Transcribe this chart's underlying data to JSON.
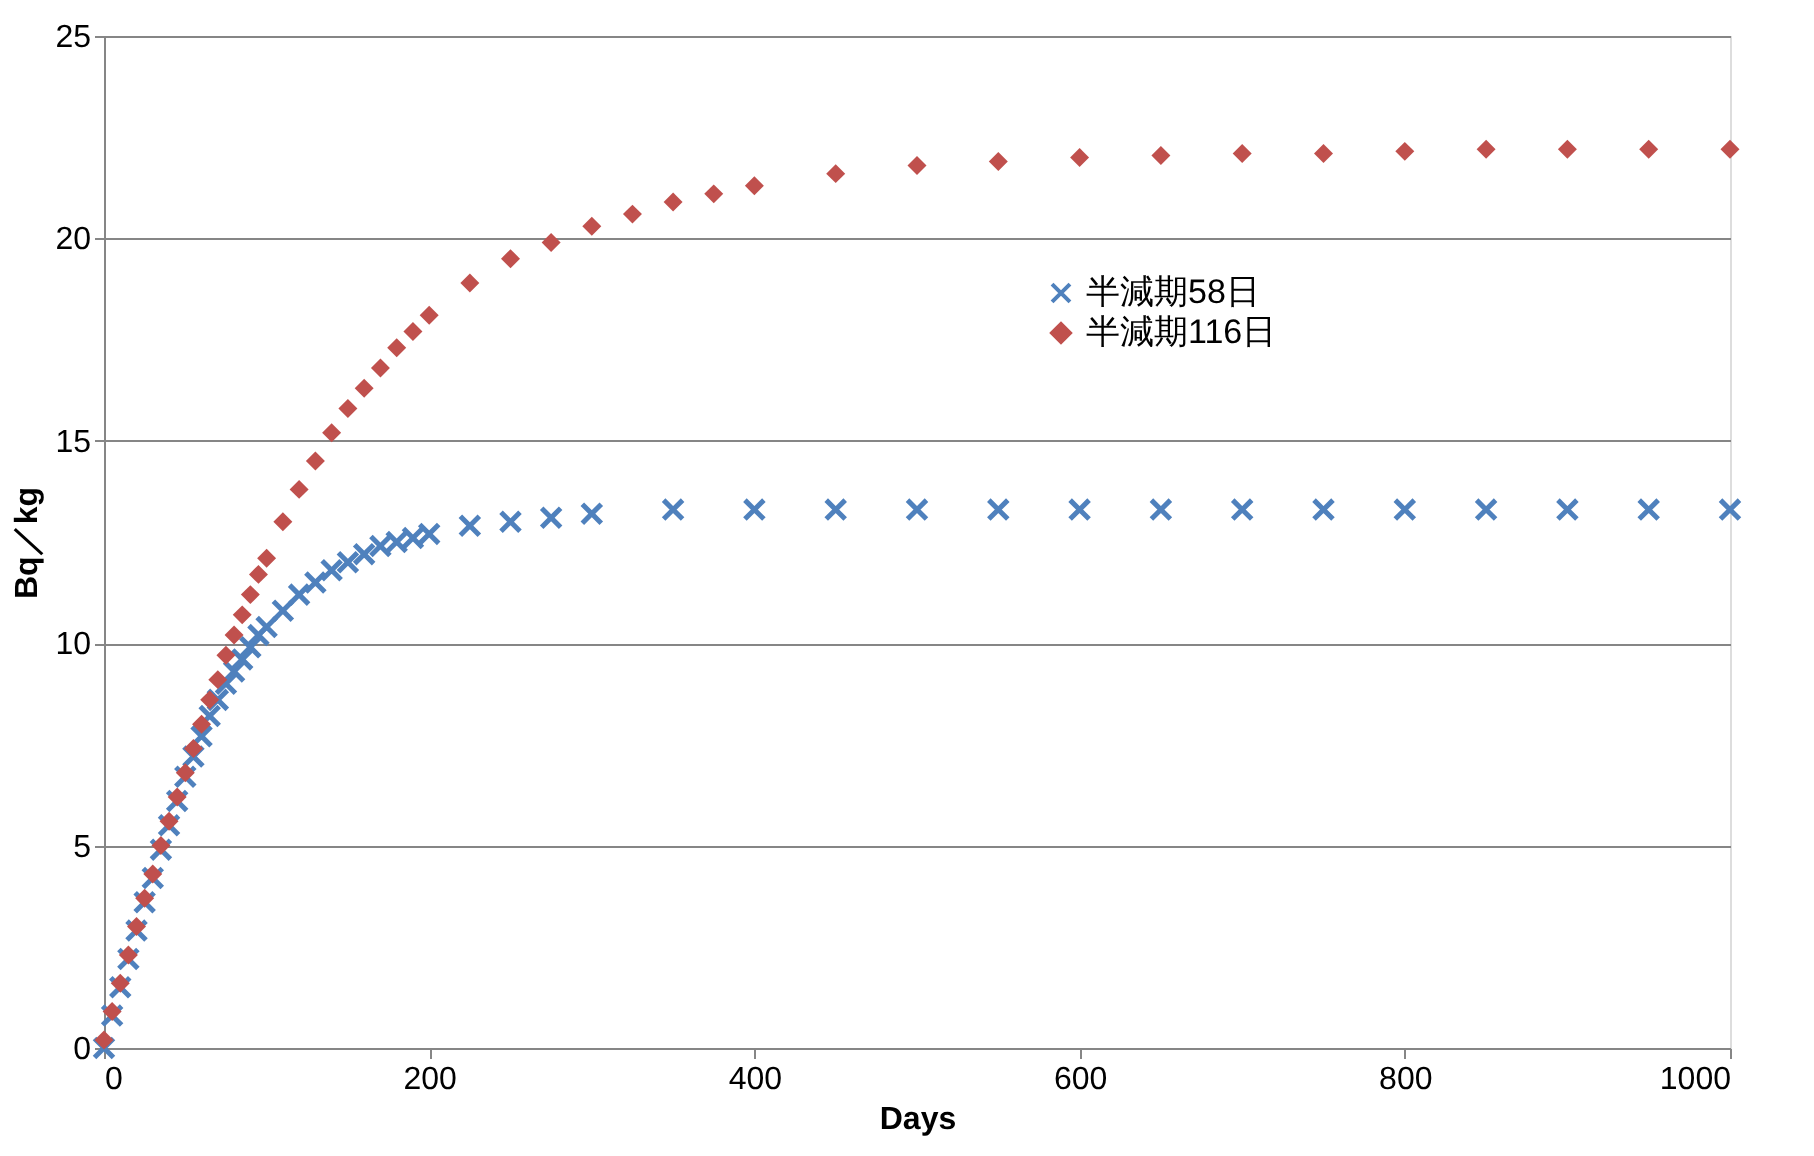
{
  "chart_data": {
    "type": "scatter",
    "xlabel": "Days",
    "ylabel": "Bq／kg",
    "xlim": [
      0,
      1000
    ],
    "xticks": [
      0,
      200,
      400,
      600,
      800,
      1000
    ],
    "ylim": [
      0,
      25
    ],
    "yticks": [
      0,
      5,
      10,
      15,
      20,
      25
    ],
    "grid": "y",
    "legend": "top right",
    "series": [
      {
        "name": "半減期58日",
        "color": "#4f81bd",
        "marker": "cross",
        "x": [
          0,
          5,
          10,
          15,
          20,
          25,
          30,
          35,
          40,
          45,
          50,
          55,
          60,
          65,
          70,
          75,
          80,
          85,
          90,
          95,
          100,
          110,
          120,
          130,
          140,
          150,
          160,
          170,
          180,
          190,
          200,
          225,
          250,
          275,
          300,
          350,
          400,
          450,
          500,
          550,
          600,
          650,
          700,
          750,
          800,
          850,
          900,
          950,
          1000
        ],
        "values": [
          0,
          0.8,
          1.5,
          2.2,
          2.9,
          3.6,
          4.2,
          4.9,
          5.5,
          6.1,
          6.7,
          7.2,
          7.7,
          8.2,
          8.6,
          9.0,
          9.3,
          9.6,
          9.9,
          10.2,
          10.4,
          10.8,
          11.2,
          11.5,
          11.8,
          12.0,
          12.2,
          12.4,
          12.5,
          12.6,
          12.7,
          12.9,
          13.0,
          13.1,
          13.2,
          13.3,
          13.3,
          13.3,
          13.3,
          13.3,
          13.3,
          13.3,
          13.3,
          13.3,
          13.3,
          13.3,
          13.3,
          13.3,
          13.3
        ]
      },
      {
        "name": "半減期116日",
        "color": "#c0504d",
        "marker": "diamond",
        "x": [
          0,
          5,
          10,
          15,
          20,
          25,
          30,
          35,
          40,
          45,
          50,
          55,
          60,
          65,
          70,
          75,
          80,
          85,
          90,
          95,
          100,
          110,
          120,
          130,
          140,
          150,
          160,
          170,
          180,
          190,
          200,
          225,
          250,
          275,
          300,
          325,
          350,
          375,
          400,
          450,
          500,
          550,
          600,
          650,
          700,
          750,
          800,
          850,
          900,
          950,
          1000
        ],
        "values": [
          0.2,
          0.9,
          1.6,
          2.3,
          3.0,
          3.7,
          4.3,
          5.0,
          5.6,
          6.2,
          6.8,
          7.4,
          8.0,
          8.6,
          9.1,
          9.7,
          10.2,
          10.7,
          11.2,
          11.7,
          12.1,
          13.0,
          13.8,
          14.5,
          15.2,
          15.8,
          16.3,
          16.8,
          17.3,
          17.7,
          18.1,
          18.9,
          19.5,
          19.9,
          20.3,
          20.6,
          20.9,
          21.1,
          21.3,
          21.6,
          21.8,
          21.9,
          22.0,
          22.05,
          22.1,
          22.1,
          22.15,
          22.2,
          22.2,
          22.2,
          22.2
        ]
      }
    ]
  }
}
